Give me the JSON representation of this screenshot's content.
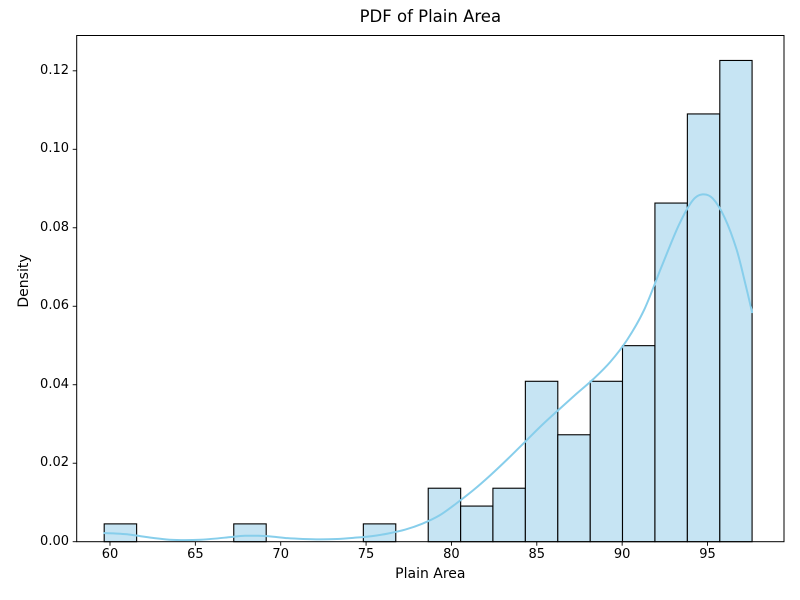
{
  "chart": {
    "title": "PDF of Plain Area",
    "xlabel": "Plain Area",
    "ylabel": "Density"
  },
  "chart_data": {
    "type": "histogram",
    "title": "PDF of Plain Area",
    "xlabel": "Plain Area",
    "ylabel": "Density",
    "grid": false,
    "legend": false,
    "xlim": [
      58.05,
      99.48
    ],
    "ylim": [
      0,
      0.129
    ],
    "xticks": [
      {
        "value": 60,
        "label": "60"
      },
      {
        "value": 65,
        "label": "65"
      },
      {
        "value": 70,
        "label": "70"
      },
      {
        "value": 75,
        "label": "75"
      },
      {
        "value": 80,
        "label": "80"
      },
      {
        "value": 85,
        "label": "85"
      },
      {
        "value": 90,
        "label": "90"
      },
      {
        "value": 95,
        "label": "95"
      }
    ],
    "yticks": [
      {
        "value": 0.0,
        "label": "0.00"
      },
      {
        "value": 0.02,
        "label": "0.02"
      },
      {
        "value": 0.04,
        "label": "0.04"
      },
      {
        "value": 0.06,
        "label": "0.06"
      },
      {
        "value": 0.08,
        "label": "0.08"
      },
      {
        "value": 0.1,
        "label": "0.10"
      },
      {
        "value": 0.12,
        "label": "0.12"
      }
    ],
    "bin_edges": [
      59.66,
      61.56,
      63.46,
      65.35,
      67.25,
      69.15,
      71.05,
      72.94,
      74.84,
      76.74,
      78.64,
      80.54,
      82.43,
      84.33,
      86.23,
      88.13,
      90.02,
      91.92,
      93.82,
      95.72,
      97.61
    ],
    "densities": [
      0.00454,
      0,
      0,
      0,
      0.00454,
      0,
      0,
      0,
      0.00454,
      0,
      0.01363,
      0.00908,
      0.01363,
      0.04088,
      0.02725,
      0.04088,
      0.04996,
      0.0863,
      0.10901,
      0.12264
    ],
    "kde": {
      "points": [
        [
          59.66,
          0.0022
        ],
        [
          60.3,
          0.0021
        ],
        [
          61.0,
          0.0019
        ],
        [
          61.8,
          0.0014
        ],
        [
          62.6,
          0.0009
        ],
        [
          63.5,
          0.0005
        ],
        [
          64.4,
          0.0004
        ],
        [
          65.3,
          0.0005
        ],
        [
          66.2,
          0.0008
        ],
        [
          67.1,
          0.0012
        ],
        [
          67.9,
          0.0015
        ],
        [
          68.7,
          0.0015
        ],
        [
          69.5,
          0.0013
        ],
        [
          70.4,
          0.0009
        ],
        [
          71.3,
          0.0007
        ],
        [
          72.3,
          0.0006
        ],
        [
          73.3,
          0.0007
        ],
        [
          74.3,
          0.001
        ],
        [
          75.3,
          0.0014
        ],
        [
          76.3,
          0.0021
        ],
        [
          77.3,
          0.0031
        ],
        [
          78.3,
          0.0046
        ],
        [
          79.3,
          0.0067
        ],
        [
          80.3,
          0.0098
        ],
        [
          81.3,
          0.0132
        ],
        [
          82.3,
          0.017
        ],
        [
          83.3,
          0.0211
        ],
        [
          84.3,
          0.0254
        ],
        [
          85.3,
          0.0297
        ],
        [
          86.3,
          0.0337
        ],
        [
          87.3,
          0.0376
        ],
        [
          88.3,
          0.0414
        ],
        [
          89.3,
          0.0458
        ],
        [
          90.3,
          0.0515
        ],
        [
          91.3,
          0.0592
        ],
        [
          92.3,
          0.07
        ],
        [
          93.3,
          0.0805
        ],
        [
          94.1,
          0.0868
        ],
        [
          94.7,
          0.0885
        ],
        [
          95.3,
          0.0875
        ],
        [
          96.0,
          0.0826
        ],
        [
          96.7,
          0.0745
        ],
        [
          97.2,
          0.066
        ],
        [
          97.61,
          0.0585
        ]
      ]
    },
    "colors": {
      "bar_fill": "#c6e4f3",
      "bar_edge": "#000000",
      "kde_line": "#87ceeb",
      "spine": "#000000",
      "background": "#ffffff"
    }
  }
}
